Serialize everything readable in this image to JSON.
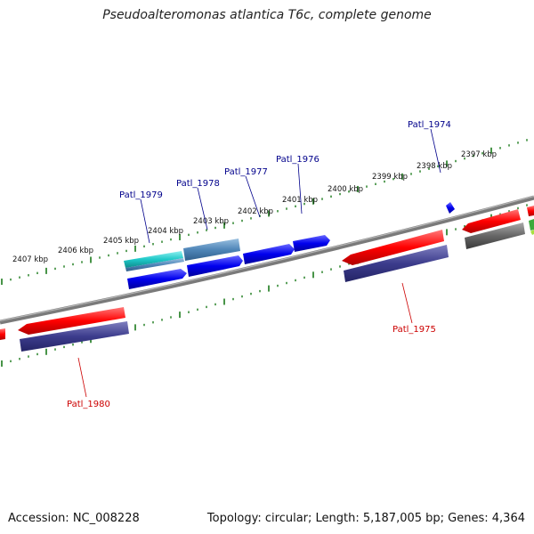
{
  "title": "Pseudoalteromonas atlantica T6c, complete genome",
  "footer": {
    "accession": "Accession: NC_008228",
    "summary": "Topology: circular; Length: 5,187,005 bp; Genes: 4,364"
  },
  "colors": {
    "forward_cds": "#ff0000",
    "reverse_cds": "#0000ee",
    "tick": "#1a7a1a",
    "backbone": "#808080",
    "gene_label_forward": "#00008b",
    "gene_label_reverse": "#cc0000"
  },
  "scale_labels": [
    "2397 kbp",
    "2398 kbp",
    "2399 kbp",
    "2400 kbp",
    "2401 kbp",
    "2402 kbp",
    "2403 kbp",
    "2404 kbp",
    "2405 kbp",
    "2406 kbp",
    "2407 kbp"
  ],
  "gene_labels": [
    "Patl_1974",
    "Patl_1976",
    "Patl_1977",
    "Patl_1978",
    "Patl_1979",
    "Patl_1975",
    "Patl_1980"
  ]
}
